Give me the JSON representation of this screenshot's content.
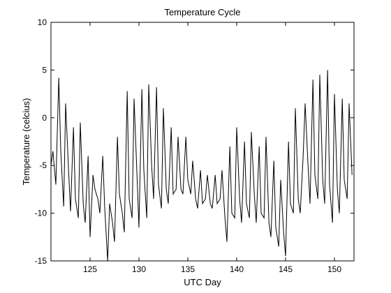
{
  "chart_data": {
    "type": "line",
    "title": "Temperature Cycle",
    "xlabel": "UTC Day",
    "ylabel": "Temperature (celcius)",
    "xlim": [
      121,
      152
    ],
    "ylim": [
      -15,
      10
    ],
    "x_ticks": [
      125,
      130,
      135,
      140,
      145,
      150
    ],
    "y_ticks": [
      -15,
      -10,
      -5,
      0,
      5,
      10
    ],
    "grid": false,
    "line_color": "#000000",
    "series": [
      {
        "x": [
          121.0,
          121.2,
          121.5,
          121.8,
          122.0,
          122.3,
          122.5,
          122.8,
          123.0,
          123.3,
          123.5,
          123.8,
          124.0,
          124.3,
          124.5,
          124.8,
          125.0,
          125.3,
          125.5,
          125.8,
          126.0,
          126.3,
          126.5,
          126.8,
          127.0,
          127.3,
          127.5,
          127.8,
          128.0,
          128.3,
          128.5,
          128.8,
          129.0,
          129.3,
          129.5,
          129.8,
          130.0,
          130.3,
          130.5,
          130.8,
          131.0,
          131.3,
          131.5,
          131.8,
          132.0,
          132.3,
          132.5,
          132.8,
          133.0,
          133.3,
          133.5,
          133.8,
          134.0,
          134.3,
          134.5,
          134.8,
          135.0,
          135.3,
          135.5,
          135.8,
          136.0,
          136.3,
          136.5,
          136.8,
          137.0,
          137.3,
          137.5,
          137.8,
          138.0,
          138.3,
          138.5,
          138.8,
          139.0,
          139.3,
          139.5,
          139.8,
          140.0,
          140.3,
          140.5,
          140.8,
          141.0,
          141.3,
          141.5,
          141.8,
          142.0,
          142.3,
          142.5,
          142.8,
          143.0,
          143.3,
          143.5,
          143.8,
          144.0,
          144.3,
          144.5,
          144.8,
          145.0,
          145.3,
          145.5,
          145.8,
          146.0,
          146.3,
          146.5,
          146.8,
          147.0,
          147.3,
          147.5,
          147.8,
          148.0,
          148.3,
          148.5,
          148.8,
          149.0,
          149.3,
          149.5,
          149.8,
          150.0,
          150.3,
          150.5,
          150.8,
          151.0,
          151.3,
          151.5,
          151.8
        ],
        "values": [
          -5.0,
          -3.5,
          -7.0,
          4.2,
          -3.5,
          -9.3,
          1.5,
          -5.5,
          -9.8,
          -1.0,
          -8.5,
          -10.5,
          -0.5,
          -9.0,
          -11.0,
          -4.0,
          -12.5,
          -6.0,
          -7.5,
          -8.5,
          -10.0,
          -4.0,
          -9.5,
          -15.0,
          -9.0,
          -11.0,
          -13.0,
          -2.0,
          -8.0,
          -10.0,
          -12.0,
          2.8,
          -8.5,
          -10.5,
          2.0,
          -6.0,
          -11.5,
          3.0,
          -5.5,
          -10.5,
          3.5,
          -5.0,
          -8.5,
          3.2,
          -7.0,
          -9.5,
          1.0,
          -7.5,
          -9.0,
          -1.0,
          -8.0,
          -7.5,
          -2.0,
          -7.5,
          -8.0,
          -2.0,
          -6.5,
          -8.0,
          -4.5,
          -8.5,
          -9.5,
          -5.5,
          -9.0,
          -8.5,
          -6.0,
          -9.0,
          -9.5,
          -6.0,
          -9.0,
          -8.5,
          -5.5,
          -10.5,
          -13.0,
          -3.0,
          -10.0,
          -10.5,
          -1.0,
          -8.5,
          -11.0,
          -2.5,
          -9.0,
          -10.5,
          -1.5,
          -8.0,
          -11.0,
          -3.0,
          -10.0,
          -10.5,
          -2.0,
          -11.0,
          -12.5,
          -4.5,
          -11.5,
          -13.5,
          -6.5,
          -12.0,
          -14.5,
          -2.5,
          -9.0,
          -10.0,
          1.0,
          -8.5,
          -10.0,
          -4.0,
          1.5,
          -5.0,
          -9.0,
          4.0,
          -6.0,
          -8.5,
          4.5,
          -6.5,
          -9.0,
          5.0,
          -7.0,
          -11.0,
          2.5,
          -7.5,
          -10.0,
          2.0,
          -6.5,
          -8.5,
          1.5,
          -6.0
        ]
      }
    ]
  }
}
